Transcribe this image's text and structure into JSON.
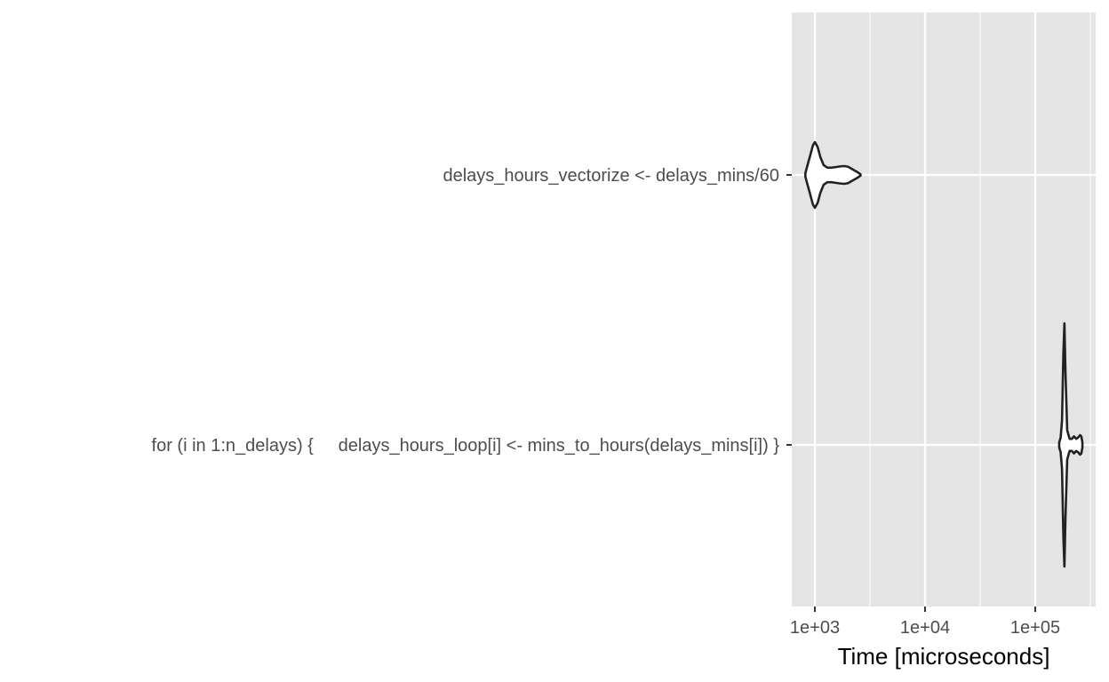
{
  "chart_data": {
    "type": "violin",
    "xlabel": "Time [microseconds]",
    "ylabel": "",
    "x_scale": "log10",
    "xlim": [
      700,
      330000
    ],
    "x_ticks": [
      1000,
      10000,
      100000
    ],
    "x_tick_labels": [
      "1e+03",
      "1e+04",
      "1e+05"
    ],
    "grid": true,
    "colors": {
      "panel_background": "#e5e5e5",
      "grid": "#ffffff",
      "violin_stroke": "#222222",
      "violin_fill": "#ffffff",
      "tick_label": "#4d4d4d",
      "axis_title": "#000000"
    },
    "categories": [
      {
        "label": "delays_hours_vectorize <- delays_mins/60",
        "density": [
          [
            820,
            0.05
          ],
          [
            850,
            0.25
          ],
          [
            900,
            0.55
          ],
          [
            960,
            0.9
          ],
          [
            1000,
            1.0
          ],
          [
            1060,
            0.85
          ],
          [
            1120,
            0.55
          ],
          [
            1200,
            0.3
          ],
          [
            1300,
            0.22
          ],
          [
            1400,
            0.22
          ],
          [
            1550,
            0.24
          ],
          [
            1700,
            0.26
          ],
          [
            1850,
            0.27
          ],
          [
            2000,
            0.25
          ],
          [
            2200,
            0.17
          ],
          [
            2450,
            0.08
          ],
          [
            2600,
            0.02
          ]
        ]
      },
      {
        "label": "for (i in 1:n_delays) {     delays_hours_loop[i] <- mins_to_hours(delays_mins[i]) }",
        "density": [
          [
            165000,
            0.02
          ],
          [
            170000,
            0.06
          ],
          [
            175000,
            0.2
          ],
          [
            180000,
            0.75
          ],
          [
            184000,
            1.0
          ],
          [
            188000,
            0.6
          ],
          [
            195000,
            0.12
          ],
          [
            205000,
            0.05
          ],
          [
            215000,
            0.05
          ],
          [
            225000,
            0.07
          ],
          [
            235000,
            0.05
          ],
          [
            245000,
            0.06
          ],
          [
            255000,
            0.08
          ],
          [
            262000,
            0.07
          ],
          [
            268000,
            0.02
          ]
        ]
      }
    ]
  }
}
